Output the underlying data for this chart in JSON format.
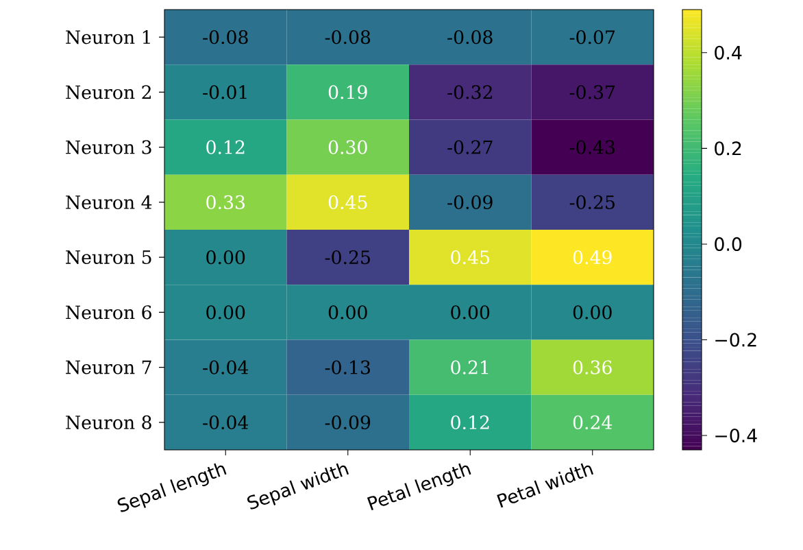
{
  "chart_data": {
    "type": "heatmap",
    "categories": [
      "Sepal length",
      "Sepal width",
      "Petal length",
      "Petal width"
    ],
    "y_categories": [
      "Neuron 1",
      "Neuron 2",
      "Neuron 3",
      "Neuron 4",
      "Neuron 5",
      "Neuron 6",
      "Neuron 7",
      "Neuron 8"
    ],
    "cells": [
      [
        -0.08,
        -0.08,
        -0.08,
        -0.07
      ],
      [
        -0.01,
        0.19,
        -0.32,
        -0.37
      ],
      [
        0.12,
        0.3,
        -0.27,
        -0.43
      ],
      [
        0.33,
        0.45,
        -0.09,
        -0.25
      ],
      [
        0.0,
        -0.25,
        0.45,
        0.49
      ],
      [
        0.0,
        0.0,
        0.0,
        0.0
      ],
      [
        -0.04,
        -0.13,
        0.21,
        0.36
      ],
      [
        -0.04,
        -0.09,
        0.12,
        0.24
      ]
    ],
    "cell_labels": [
      [
        "-0.08",
        "-0.08",
        "-0.08",
        "-0.07"
      ],
      [
        "-0.01",
        "0.19",
        "-0.32",
        "-0.37"
      ],
      [
        "0.12",
        "0.30",
        "-0.27",
        "-0.43"
      ],
      [
        "0.33",
        "0.45",
        "-0.09",
        "-0.25"
      ],
      [
        "0.00",
        "-0.25",
        "0.45",
        "0.49"
      ],
      [
        "0.00",
        "0.00",
        "0.00",
        "0.00"
      ],
      [
        "-0.04",
        "-0.13",
        "0.21",
        "0.36"
      ],
      [
        "-0.04",
        "-0.09",
        "0.12",
        "0.24"
      ]
    ],
    "clim": [
      -0.43,
      0.49
    ],
    "cticks": [
      {
        "value": -0.4,
        "label": "−0.4"
      },
      {
        "value": -0.2,
        "label": "−0.2"
      },
      {
        "value": 0.0,
        "label": "0.0"
      },
      {
        "value": 0.2,
        "label": "0.2"
      },
      {
        "value": 0.4,
        "label": "0.4"
      }
    ]
  }
}
